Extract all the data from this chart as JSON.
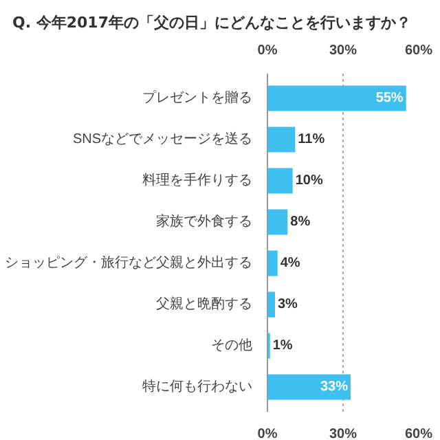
{
  "chart_data": {
    "type": "bar",
    "orientation": "horizontal",
    "title": "Q. 今年2017年の「父の日」にどんなことを行いますか？",
    "categories": [
      "プレゼントを贈る",
      "SNSなどでメッセージを送る",
      "料理を手作りする",
      "家族で外食する",
      "ショッピング・旅行など父親と外出する",
      "父親と晩酌する",
      "その他",
      "特に何も行わない"
    ],
    "values": [
      55,
      11,
      10,
      8,
      4,
      3,
      1,
      33
    ],
    "value_labels": [
      "55%",
      "11%",
      "10%",
      "8%",
      "4%",
      "3%",
      "1%",
      "33%"
    ],
    "color": "#3dbfef",
    "xlim": [
      0,
      60
    ],
    "xticks": [
      {
        "value": 0,
        "label": "0%"
      },
      {
        "value": 30,
        "label": "30%"
      },
      {
        "value": 60,
        "label": "60%"
      }
    ],
    "x2lim": [
      0,
      60
    ],
    "x2ticks": [
      {
        "value": 0,
        "label": "0%"
      },
      {
        "value": 30,
        "label": "30%"
      },
      {
        "value": 60,
        "label": "60%"
      }
    ],
    "grid": "x"
  }
}
